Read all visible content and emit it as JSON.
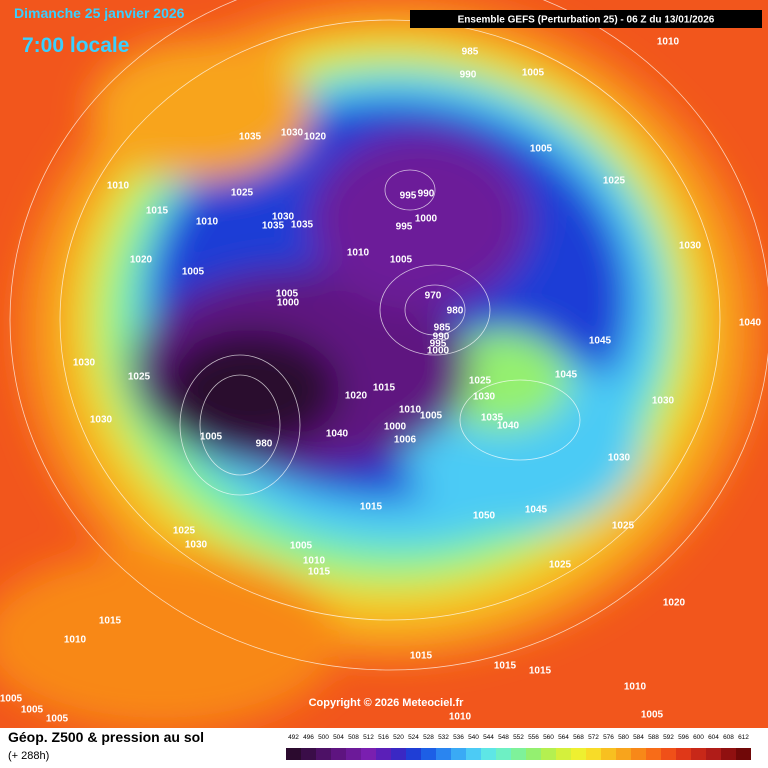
{
  "header": {
    "date": "Dimanche 25 janvier 2026",
    "time": "7:00 locale",
    "run": "Ensemble GEFS  (Perturbation 25)  -  06 Z du 13/01/2026"
  },
  "map": {
    "isobar_labels": [
      "1010",
      "985",
      "990",
      "1005",
      "1035",
      "1030",
      "1020",
      "1005",
      "1025",
      "1010",
      "1025",
      "990",
      "995",
      "1015",
      "1010",
      "1030",
      "1035",
      "1035",
      "1000",
      "995",
      "1030",
      "1010",
      "1005",
      "1020",
      "1005",
      "1005",
      "1000",
      "970",
      "980",
      "985",
      "990",
      "995",
      "1000",
      "1045",
      "1040",
      "1030",
      "1025",
      "1015",
      "1020",
      "1025",
      "1030",
      "1045",
      "1030",
      "1010",
      "1005",
      "1035",
      "1040",
      "1030",
      "1000",
      "1040",
      "1006",
      "1005",
      "980",
      "1030",
      "1015",
      "1050",
      "1045",
      "1025",
      "1025",
      "1030",
      "1005",
      "1010",
      "1015",
      "1025",
      "1020",
      "1015",
      "1015",
      "1015",
      "1015",
      "1010",
      "1010",
      "1005",
      "1005",
      "1005",
      "1010",
      "1005"
    ]
  },
  "copyright": "Copyright © 2026 Meteociel.fr",
  "footer": {
    "title": "Géop. Z500 & pression au sol",
    "lead": "(+ 288h)"
  },
  "legend": {
    "values": [
      492,
      496,
      500,
      504,
      508,
      512,
      516,
      520,
      524,
      528,
      532,
      536,
      540,
      544,
      548,
      552,
      556,
      560,
      564,
      568,
      572,
      576,
      580,
      584,
      588,
      592,
      596,
      600,
      604,
      608,
      612
    ],
    "colors": [
      "#2b0a2e",
      "#3a0d48",
      "#4d1166",
      "#5e1480",
      "#6c1a99",
      "#7a1fb0",
      "#5b1fb8",
      "#3a28c4",
      "#1f3ed6",
      "#1d5fe6",
      "#2a85f0",
      "#3aaaf5",
      "#4ccbf5",
      "#5ee6e6",
      "#6ef0c4",
      "#7ef29a",
      "#94f070",
      "#b4f050",
      "#d4f03c",
      "#eef030",
      "#f8dc28",
      "#f8c020",
      "#f8a41c",
      "#f88818",
      "#f86c18",
      "#f05018",
      "#e03818",
      "#c82818",
      "#b01c18",
      "#901010",
      "#700808"
    ]
  }
}
